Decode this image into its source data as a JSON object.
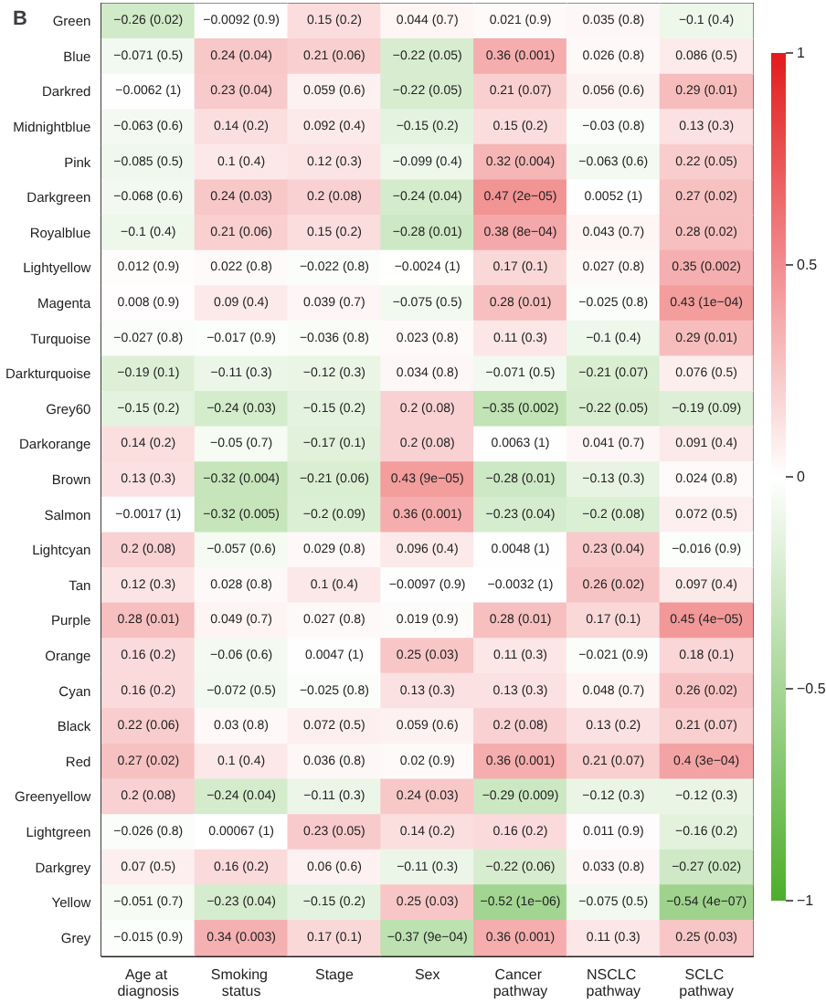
{
  "chart_data": {
    "type": "heatmap",
    "title": "B",
    "categories": [
      "Age at diagnosis",
      "Smoking status",
      "Stage",
      "Sex",
      "Cancer pathway",
      "NSCLC pathway",
      "SCLC pathway"
    ],
    "y_categories": [
      "Green",
      "Blue",
      "Darkred",
      "Midnightblue",
      "Pink",
      "Darkgreen",
      "Royalblue",
      "Lightyellow",
      "Magenta",
      "Turquoise",
      "Darkturquoise",
      "Grey60",
      "Darkorange",
      "Brown",
      "Salmon",
      "Lightcyan",
      "Tan",
      "Purple",
      "Orange",
      "Cyan",
      "Black",
      "Red",
      "Greenyellow",
      "Lightgreen",
      "Darkgrey",
      "Yellow",
      "Grey"
    ],
    "cells": [
      [
        -0.26,
        -0.0092,
        0.15,
        0.044,
        0.021,
        0.035,
        -0.1
      ],
      [
        -0.071,
        0.24,
        0.21,
        -0.22,
        0.36,
        0.026,
        0.086
      ],
      [
        -0.0062,
        0.23,
        0.059,
        -0.22,
        0.21,
        0.056,
        0.29
      ],
      [
        -0.063,
        0.14,
        0.092,
        -0.15,
        0.15,
        -0.03,
        0.13
      ],
      [
        -0.085,
        0.1,
        0.12,
        -0.099,
        0.32,
        -0.063,
        0.22
      ],
      [
        -0.068,
        0.24,
        0.2,
        -0.24,
        0.47,
        0.0052,
        0.27
      ],
      [
        -0.1,
        0.21,
        0.15,
        -0.28,
        0.38,
        0.043,
        0.28
      ],
      [
        0.012,
        0.022,
        -0.022,
        -0.0024,
        0.17,
        0.027,
        0.35
      ],
      [
        0.008,
        0.09,
        0.039,
        -0.075,
        0.28,
        -0.025,
        0.43
      ],
      [
        -0.027,
        -0.017,
        -0.036,
        0.023,
        0.11,
        -0.1,
        0.29
      ],
      [
        -0.19,
        -0.11,
        -0.12,
        0.034,
        -0.071,
        -0.21,
        0.076
      ],
      [
        -0.15,
        -0.24,
        -0.15,
        0.2,
        -0.35,
        -0.22,
        -0.19
      ],
      [
        0.14,
        -0.05,
        -0.17,
        0.2,
        0.0063,
        0.041,
        0.091
      ],
      [
        0.13,
        -0.32,
        -0.21,
        0.43,
        -0.28,
        -0.13,
        0.024
      ],
      [
        -0.0017,
        -0.32,
        -0.2,
        0.36,
        -0.23,
        -0.2,
        0.072
      ],
      [
        0.2,
        -0.057,
        0.029,
        0.096,
        0.0048,
        0.23,
        -0.016
      ],
      [
        0.12,
        0.028,
        0.1,
        -0.0097,
        -0.0032,
        0.26,
        0.097
      ],
      [
        0.28,
        0.049,
        0.027,
        0.019,
        0.28,
        0.17,
        0.45
      ],
      [
        0.16,
        -0.06,
        0.0047,
        0.25,
        0.11,
        -0.021,
        0.18
      ],
      [
        0.16,
        -0.072,
        -0.025,
        0.13,
        0.13,
        0.048,
        0.26
      ],
      [
        0.22,
        0.03,
        0.072,
        0.059,
        0.2,
        0.13,
        0.21
      ],
      [
        0.27,
        0.1,
        0.036,
        0.02,
        0.36,
        0.21,
        0.4
      ],
      [
        0.2,
        -0.24,
        -0.11,
        0.24,
        -0.29,
        -0.12,
        -0.12
      ],
      [
        -0.026,
        0.00067,
        0.23,
        0.14,
        0.16,
        0.011,
        -0.16
      ],
      [
        0.07,
        0.16,
        0.06,
        -0.11,
        -0.22,
        0.033,
        -0.27
      ],
      [
        -0.051,
        -0.23,
        -0.15,
        0.25,
        -0.52,
        -0.075,
        -0.54
      ],
      [
        -0.015,
        0.34,
        0.17,
        -0.37,
        0.36,
        0.11,
        0.25
      ]
    ],
    "cell_labels": [
      [
        "−0.26 (0.02)",
        "−0.0092 (0.9)",
        "0.15 (0.2)",
        "0.044 (0.7)",
        "0.021 (0.9)",
        "0.035 (0.8)",
        "−0.1 (0.4)"
      ],
      [
        "−0.071 (0.5)",
        "0.24 (0.04)",
        "0.21 (0.06)",
        "−0.22 (0.05)",
        "0.36 (0.001)",
        "0.026 (0.8)",
        "0.086 (0.5)"
      ],
      [
        "−0.0062 (1)",
        "0.23 (0.04)",
        "0.059 (0.6)",
        "−0.22 (0.05)",
        "0.21 (0.07)",
        "0.056 (0.6)",
        "0.29 (0.01)"
      ],
      [
        "−0.063 (0.6)",
        "0.14 (0.2)",
        "0.092 (0.4)",
        "−0.15 (0.2)",
        "0.15 (0.2)",
        "−0.03 (0.8)",
        "0.13 (0.3)"
      ],
      [
        "−0.085 (0.5)",
        "0.1 (0.4)",
        "0.12 (0.3)",
        "−0.099 (0.4)",
        "0.32 (0.004)",
        "−0.063 (0.6)",
        "0.22 (0.05)"
      ],
      [
        "−0.068 (0.6)",
        "0.24 (0.03)",
        "0.2 (0.08)",
        "−0.24 (0.04)",
        "0.47 (2e−05)",
        "0.0052 (1)",
        "0.27 (0.02)"
      ],
      [
        "−0.1 (0.4)",
        "0.21 (0.06)",
        "0.15 (0.2)",
        "−0.28 (0.01)",
        "0.38 (8e−04)",
        "0.043 (0.7)",
        "0.28 (0.02)"
      ],
      [
        "0.012 (0.9)",
        "0.022 (0.8)",
        "−0.022 (0.8)",
        "−0.0024 (1)",
        "0.17 (0.1)",
        "0.027 (0.8)",
        "0.35 (0.002)"
      ],
      [
        "0.008 (0.9)",
        "0.09 (0.4)",
        "0.039 (0.7)",
        "−0.075 (0.5)",
        "0.28 (0.01)",
        "−0.025 (0.8)",
        "0.43 (1e−04)"
      ],
      [
        "−0.027 (0.8)",
        "−0.017 (0.9)",
        "−0.036 (0.8)",
        "0.023 (0.8)",
        "0.11 (0.3)",
        "−0.1 (0.4)",
        "0.29 (0.01)"
      ],
      [
        "−0.19 (0.1)",
        "−0.11 (0.3)",
        "−0.12 (0.3)",
        "0.034 (0.8)",
        "−0.071 (0.5)",
        "−0.21 (0.07)",
        "0.076 (0.5)"
      ],
      [
        "−0.15 (0.2)",
        "−0.24 (0.03)",
        "−0.15 (0.2)",
        "0.2 (0.08)",
        "−0.35 (0.002)",
        "−0.22 (0.05)",
        "−0.19 (0.09)"
      ],
      [
        "0.14 (0.2)",
        "−0.05 (0.7)",
        "−0.17 (0.1)",
        "0.2 (0.08)",
        "0.0063 (1)",
        "0.041 (0.7)",
        "0.091 (0.4)"
      ],
      [
        "0.13 (0.3)",
        "−0.32 (0.004)",
        "−0.21 (0.06)",
        "0.43 (9e−05)",
        "−0.28 (0.01)",
        "−0.13 (0.3)",
        "0.024 (0.8)"
      ],
      [
        "−0.0017 (1)",
        "−0.32 (0.005)",
        "−0.2 (0.09)",
        "0.36 (0.001)",
        "−0.23 (0.04)",
        "−0.2 (0.08)",
        "0.072 (0.5)"
      ],
      [
        "0.2 (0.08)",
        "−0.057 (0.6)",
        "0.029 (0.8)",
        "0.096 (0.4)",
        "0.0048 (1)",
        "0.23 (0.04)",
        "−0.016 (0.9)"
      ],
      [
        "0.12 (0.3)",
        "0.028 (0.8)",
        "0.1 (0.4)",
        "−0.0097 (0.9)",
        "−0.0032 (1)",
        "0.26 (0.02)",
        "0.097 (0.4)"
      ],
      [
        "0.28 (0.01)",
        "0.049 (0.7)",
        "0.027 (0.8)",
        "0.019 (0.9)",
        "0.28 (0.01)",
        "0.17 (0.1)",
        "0.45 (4e−05)"
      ],
      [
        "0.16 (0.2)",
        "−0.06 (0.6)",
        "0.0047 (1)",
        "0.25 (0.03)",
        "0.11 (0.3)",
        "−0.021 (0.9)",
        "0.18 (0.1)"
      ],
      [
        "0.16 (0.2)",
        "−0.072 (0.5)",
        "−0.025 (0.8)",
        "0.13 (0.3)",
        "0.13 (0.3)",
        "0.048 (0.7)",
        "0.26 (0.02)"
      ],
      [
        "0.22 (0.06)",
        "0.03 (0.8)",
        "0.072 (0.5)",
        "0.059 (0.6)",
        "0.2 (0.08)",
        "0.13 (0.2)",
        "0.21 (0.07)"
      ],
      [
        "0.27 (0.02)",
        "0.1 (0.4)",
        "0.036 (0.8)",
        "0.02 (0.9)",
        "0.36 (0.001)",
        "0.21 (0.07)",
        "0.4 (3e−04)"
      ],
      [
        "0.2 (0.08)",
        "−0.24 (0.04)",
        "−0.11 (0.3)",
        "0.24 (0.03)",
        "−0.29 (0.009)",
        "−0.12 (0.3)",
        "−0.12 (0.3)"
      ],
      [
        "−0.026 (0.8)",
        "0.00067 (1)",
        "0.23 (0.05)",
        "0.14 (0.2)",
        "0.16 (0.2)",
        "0.011 (0.9)",
        "−0.16 (0.2)"
      ],
      [
        "0.07 (0.5)",
        "0.16 (0.2)",
        "0.06 (0.6)",
        "−0.11 (0.3)",
        "−0.22 (0.06)",
        "0.033 (0.8)",
        "−0.27 (0.02)"
      ],
      [
        "−0.051 (0.7)",
        "−0.23 (0.04)",
        "−0.15 (0.2)",
        "0.25 (0.03)",
        "−0.52 (1e−06)",
        "−0.075 (0.5)",
        "−0.54 (4e−07)"
      ],
      [
        "−0.015 (0.9)",
        "0.34 (0.003)",
        "0.17 (0.1)",
        "−0.37 (9e−04)",
        "0.36 (0.001)",
        "0.11 (0.3)",
        "0.25 (0.03)"
      ]
    ],
    "clim": [
      -1,
      1
    ],
    "cticks": [
      {
        "value": -1,
        "label": "−1"
      },
      {
        "value": -0.5,
        "label": "−0.5"
      },
      0,
      0.5,
      1
    ]
  }
}
